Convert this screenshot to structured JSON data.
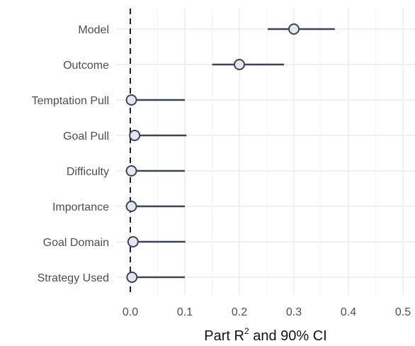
{
  "chart_data": {
    "type": "forest",
    "xlabel_main": "Part R",
    "xlabel_sup": "2",
    "xlabel_rest": " and 90% CI",
    "xlim": [
      -0.01,
      0.52
    ],
    "xticks": [
      "0.0",
      "0.1",
      "0.2",
      "0.3",
      "0.4",
      "0.5"
    ],
    "xtick_values": [
      0.0,
      0.1,
      0.2,
      0.3,
      0.4,
      0.5
    ],
    "grid": true,
    "zero_line": true,
    "rows": [
      {
        "label": "Model",
        "estimate": 0.3,
        "lower": 0.252,
        "upper": 0.375
      },
      {
        "label": "Outcome",
        "estimate": 0.2,
        "lower": 0.15,
        "upper": 0.282
      },
      {
        "label": "Temptation Pull",
        "estimate": 0.002,
        "lower": 0.0,
        "upper": 0.1
      },
      {
        "label": "Goal Pull",
        "estimate": 0.008,
        "lower": 0.0,
        "upper": 0.103
      },
      {
        "label": "Difficulty",
        "estimate": 0.002,
        "lower": 0.0,
        "upper": 0.1
      },
      {
        "label": "Importance",
        "estimate": 0.002,
        "lower": 0.0,
        "upper": 0.1
      },
      {
        "label": "Goal Domain",
        "estimate": 0.005,
        "lower": 0.0,
        "upper": 0.101
      },
      {
        "label": "Strategy Used",
        "estimate": 0.003,
        "lower": 0.0,
        "upper": 0.1
      }
    ]
  }
}
